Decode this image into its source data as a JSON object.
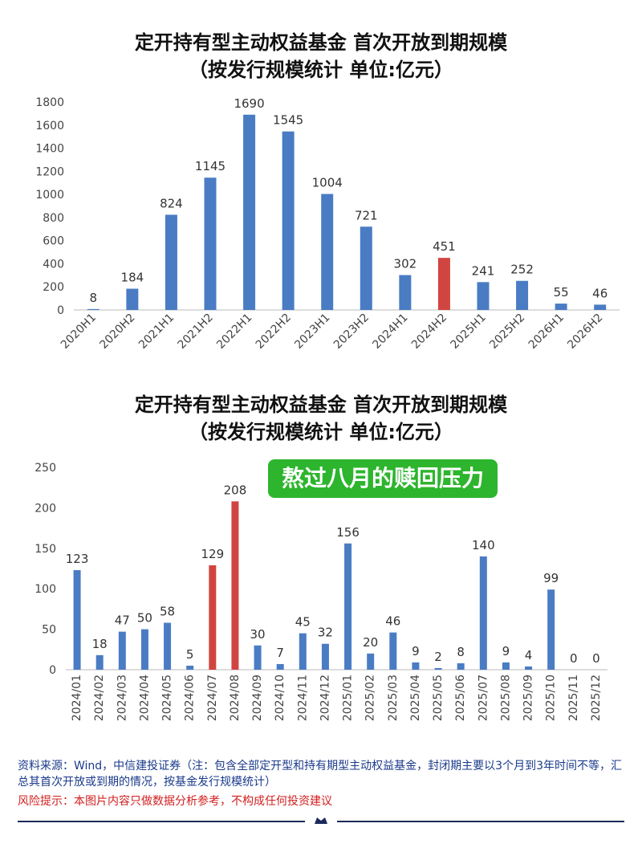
{
  "chart_data": [
    {
      "type": "bar",
      "title": "定开持有型主动权益基金 首次开放到期规模",
      "subtitle": "（按发行规模统计 单位:亿元）",
      "categories": [
        "2020H1",
        "2020H2",
        "2021H1",
        "2021H2",
        "2022H1",
        "2022H2",
        "2023H1",
        "2023H2",
        "2024H1",
        "2024H2",
        "2025H1",
        "2025H2",
        "2026H1",
        "2026H2"
      ],
      "values": [
        8,
        184,
        824,
        1145,
        1690,
        1545,
        1004,
        721,
        302,
        451,
        241,
        252,
        55,
        46
      ],
      "highlight": [
        "2024H2"
      ],
      "ylim": [
        0,
        1800
      ],
      "yticks": [
        0,
        200,
        400,
        600,
        800,
        1000,
        1200,
        1400,
        1600,
        1800
      ],
      "colors": {
        "bar": "#4a7cc4",
        "highlight": "#d14541"
      },
      "grid": false
    },
    {
      "type": "bar",
      "title": "定开持有型主动权益基金 首次开放到期规模",
      "subtitle": "（按发行规模统计 单位:亿元）",
      "annotation": "熬过八月的赎回压力",
      "categories": [
        "2024/01",
        "2024/02",
        "2024/03",
        "2024/04",
        "2024/05",
        "2024/06",
        "2024/07",
        "2024/08",
        "2024/09",
        "2024/10",
        "2024/11",
        "2024/12",
        "2025/01",
        "2025/02",
        "2025/03",
        "2025/04",
        "2025/05",
        "2025/06",
        "2025/07",
        "2025/08",
        "2025/09",
        "2025/10",
        "2025/11",
        "2025/12"
      ],
      "values": [
        123,
        18,
        47,
        50,
        58,
        5,
        129,
        208,
        30,
        7,
        45,
        32,
        156,
        20,
        46,
        9,
        2,
        8,
        140,
        9,
        4,
        99,
        0,
        0
      ],
      "highlight": [
        "2024/07",
        "2024/08"
      ],
      "ylim": [
        0,
        250
      ],
      "yticks": [
        0,
        50,
        100,
        150,
        200,
        250
      ],
      "colors": {
        "bar": "#4a7cc4",
        "highlight": "#d14541",
        "annotation_bg": "#2db52d"
      },
      "grid": false
    }
  ],
  "footer": {
    "source": "资料来源：Wind，中信建投证券（注：包含全部定开型和持有期型主动权益基金，封闭期主要以3个月到3年时间不等，汇总其首次开放或到期的情况，按基金发行规模统计）",
    "risk": "风险提示：本图片内容只做数据分析参考，不构成任何投资建议"
  }
}
